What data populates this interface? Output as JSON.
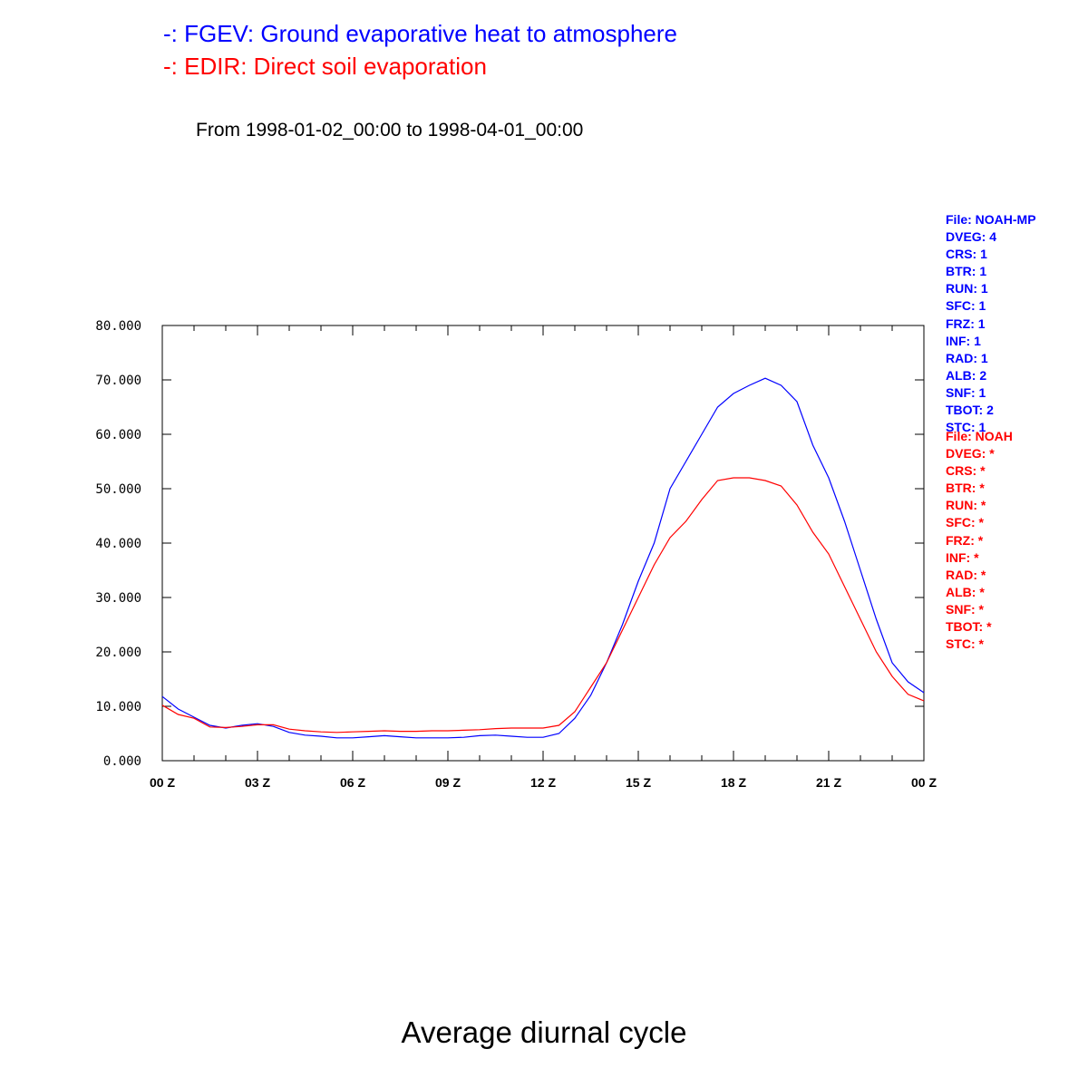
{
  "legend": [
    {
      "text": "-: FGEV: Ground evaporative heat to atmosphere",
      "color": "#0000ff"
    },
    {
      "text": "-: EDIR: Direct soil evaporation",
      "color": "#ff0000"
    }
  ],
  "subtitle": "From 1998-01-02_00:00 to 1998-04-01_00:00",
  "bottom_title": "Average diurnal cycle",
  "info_blue": {
    "color": "#0000ff",
    "lines": [
      "File: NOAH-MP",
      "DVEG: 4",
      "CRS: 1",
      "BTR: 1",
      "RUN: 1",
      "SFC: 1",
      "FRZ: 1",
      "INF: 1",
      "RAD: 1",
      "ALB: 2",
      "SNF: 1",
      "TBOT: 2",
      "STC: 1"
    ]
  },
  "info_red": {
    "color": "#ff0000",
    "lines": [
      "File: NOAH",
      "DVEG: *",
      "CRS: *",
      "BTR: *",
      "RUN: *",
      "SFC: *",
      "FRZ: *",
      "INF: *",
      "RAD: *",
      "ALB: *",
      "SNF: *",
      "TBOT: *",
      "STC: *"
    ]
  },
  "chart_data": {
    "type": "line",
    "xlim": [
      0,
      24
    ],
    "ylim": [
      0,
      80
    ],
    "x_ticks": [
      0,
      3,
      6,
      9,
      12,
      15,
      18,
      21,
      24
    ],
    "x_tick_labels": [
      "00 Z",
      "03 Z",
      "06 Z",
      "09 Z",
      "12 Z",
      "15 Z",
      "18 Z",
      "21 Z",
      "00 Z"
    ],
    "y_ticks": [
      0,
      10,
      20,
      30,
      40,
      50,
      60,
      70,
      80
    ],
    "y_tick_labels": [
      "0.000",
      "10.000",
      "20.000",
      "30.000",
      "40.000",
      "50.000",
      "60.000",
      "70.000",
      "80.000"
    ],
    "x_minor_step": 1,
    "grid": false,
    "series": [
      {
        "name": "FGEV",
        "color": "#0000ff",
        "x": [
          0,
          0.5,
          1,
          1.5,
          2,
          2.5,
          3,
          3.5,
          4,
          4.5,
          5,
          5.5,
          6,
          6.5,
          7,
          7.5,
          8,
          8.5,
          9,
          9.5,
          10,
          10.5,
          11,
          11.5,
          12,
          12.5,
          13,
          13.5,
          14,
          14.5,
          15,
          15.5,
          16,
          16.5,
          17,
          17.5,
          18,
          18.5,
          19,
          19.5,
          20,
          20.5,
          21,
          21.5,
          22,
          22.5,
          23,
          23.5,
          24
        ],
        "y": [
          11.8,
          9.5,
          8.0,
          6.5,
          6.0,
          6.5,
          6.8,
          6.3,
          5.2,
          4.7,
          4.5,
          4.2,
          4.2,
          4.4,
          4.6,
          4.4,
          4.2,
          4.2,
          4.2,
          4.3,
          4.6,
          4.7,
          4.5,
          4.3,
          4.3,
          5.0,
          7.8,
          12.0,
          18.0,
          25.0,
          33.0,
          40.0,
          50.0,
          55.0,
          60.0,
          65.0,
          67.5,
          69.0,
          70.3,
          69.0,
          66.0,
          58.0,
          52.0,
          44.0,
          35.0,
          26.0,
          18.0,
          14.5,
          12.5
        ]
      },
      {
        "name": "EDIR",
        "color": "#ff0000",
        "x": [
          0,
          0.5,
          1,
          1.5,
          2,
          2.5,
          3,
          3.5,
          4,
          4.5,
          5,
          5.5,
          6,
          6.5,
          7,
          7.5,
          8,
          8.5,
          9,
          9.5,
          10,
          10.5,
          11,
          11.5,
          12,
          12.5,
          13,
          13.5,
          14,
          14.5,
          15,
          15.5,
          16,
          16.5,
          17,
          17.5,
          18,
          18.5,
          19,
          19.5,
          20,
          20.5,
          21,
          21.5,
          22,
          22.5,
          23,
          23.5,
          24
        ],
        "y": [
          10.2,
          8.5,
          7.8,
          6.2,
          6.1,
          6.3,
          6.6,
          6.6,
          5.8,
          5.5,
          5.3,
          5.2,
          5.3,
          5.4,
          5.5,
          5.4,
          5.4,
          5.5,
          5.5,
          5.6,
          5.7,
          5.9,
          6.0,
          6.0,
          6.0,
          6.5,
          9.0,
          13.5,
          18.0,
          24.0,
          30.0,
          36.0,
          41.0,
          44.0,
          48.0,
          51.5,
          52.0,
          52.0,
          51.5,
          50.5,
          47.0,
          42.0,
          38.0,
          32.0,
          26.0,
          20.0,
          15.5,
          12.2,
          11.0
        ]
      }
    ]
  }
}
